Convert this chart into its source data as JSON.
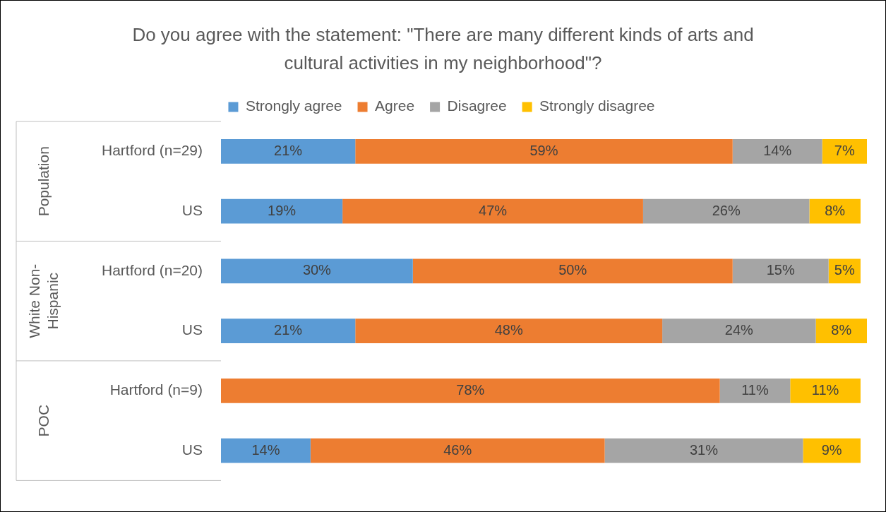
{
  "chart_data": {
    "type": "bar",
    "orientation": "horizontal",
    "stacked": true,
    "title": "Do you agree with the statement: \"There are many different kinds of arts and cultural activities in my neighborhood\"?",
    "categories": [
      "Hartford (n=29)",
      "US",
      "Hartford (n=20)",
      "US",
      "Hartford (n=9)",
      "US"
    ],
    "annotations": [
      "Population",
      "White Non-Hispanic",
      "POC"
    ],
    "xlim": [
      0,
      101
    ],
    "tick_labels": "y",
    "legend": "top",
    "series": [
      {
        "name": "Strongly agree",
        "color": "#5b9bd5",
        "values": [
          21,
          19,
          30,
          21,
          0,
          14
        ],
        "value_labels": [
          "21%",
          "19%",
          "30%",
          "21%",
          null,
          "14%"
        ]
      },
      {
        "name": "Agree",
        "color": "#ed7d31",
        "values": [
          59,
          47,
          50,
          48,
          78,
          46
        ],
        "value_labels": [
          "59%",
          "47%",
          "50%",
          "48%",
          "78%",
          "46%"
        ]
      },
      {
        "name": "Disagree",
        "color": "#a5a5a5",
        "values": [
          14,
          26,
          15,
          24,
          11,
          31
        ],
        "value_labels": [
          "14%",
          "26%",
          "15%",
          "24%",
          "11%",
          "31%"
        ]
      },
      {
        "name": "Strongly disagree",
        "color": "#ffc000",
        "values": [
          7,
          8,
          5,
          8,
          11,
          9
        ],
        "value_labels": [
          "7%",
          "8%",
          "5%",
          "8%",
          "11%",
          "9%"
        ]
      }
    ]
  }
}
